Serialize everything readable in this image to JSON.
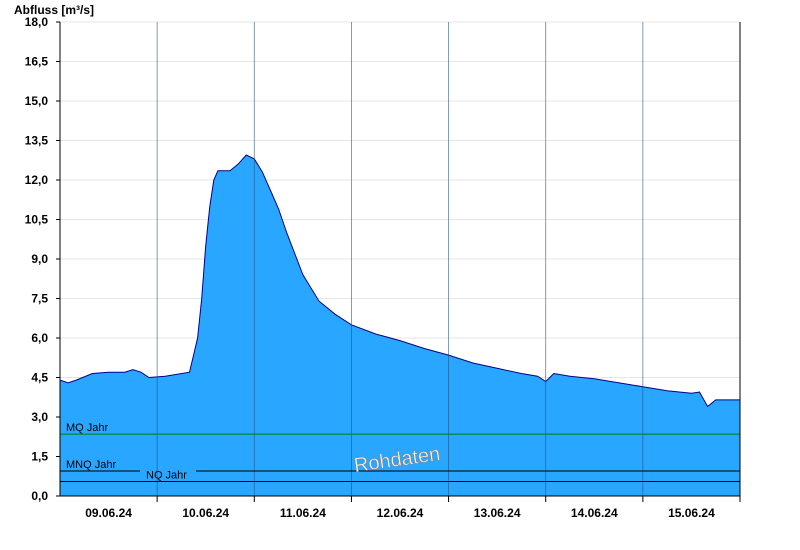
{
  "chart_data": {
    "type": "area",
    "ylabel": "Abfluss [m³/s]",
    "ylim": [
      0,
      18.0
    ],
    "yticks": [
      "0,0",
      "1,5",
      "3,0",
      "4,5",
      "6,0",
      "7,5",
      "9,0",
      "10,5",
      "12,0",
      "13,5",
      "15,0",
      "16,5",
      "18,0"
    ],
    "xlim": [
      "2024-06-08T12:00",
      "2024-06-15T12:00"
    ],
    "xticks": [
      "09.06.24",
      "10.06.24",
      "11.06.24",
      "12.06.24",
      "13.06.24",
      "14.06.24",
      "15.06.24"
    ],
    "grid": true,
    "watermark": "Rohdaten",
    "colors": {
      "area": "#29a6ff",
      "line": "#00008b",
      "mq": "#008000",
      "ref": "#000000"
    },
    "reference_lines": [
      {
        "name": "MQ Jahr",
        "value": 2.35
      },
      {
        "name": "MNQ Jahr",
        "value": 0.95
      },
      {
        "name": "NQ Jahr",
        "value": 0.55
      }
    ],
    "series": [
      {
        "x": [
          "2024-06-08T12:00",
          "2024-06-08T14:00",
          "2024-06-08T16:00",
          "2024-06-08T20:00",
          "2024-06-09T00:00",
          "2024-06-09T04:00",
          "2024-06-09T06:00",
          "2024-06-09T08:00",
          "2024-06-09T10:00",
          "2024-06-09T14:00",
          "2024-06-09T20:00",
          "2024-06-09T22:00",
          "2024-06-09T23:00",
          "2024-06-10T00:00",
          "2024-06-10T01:00",
          "2024-06-10T02:00",
          "2024-06-10T03:00",
          "2024-06-10T04:00",
          "2024-06-10T06:00",
          "2024-06-10T08:00",
          "2024-06-10T10:00",
          "2024-06-10T12:00",
          "2024-06-10T14:00",
          "2024-06-10T16:00",
          "2024-06-10T18:00",
          "2024-06-10T20:00",
          "2024-06-10T22:00",
          "2024-06-11T00:00",
          "2024-06-11T04:00",
          "2024-06-11T08:00",
          "2024-06-11T12:00",
          "2024-06-11T18:00",
          "2024-06-12T00:00",
          "2024-06-12T06:00",
          "2024-06-12T12:00",
          "2024-06-12T18:00",
          "2024-06-13T00:00",
          "2024-06-13T06:00",
          "2024-06-13T10:00",
          "2024-06-13T12:00",
          "2024-06-13T14:00",
          "2024-06-13T18:00",
          "2024-06-14T00:00",
          "2024-06-14T06:00",
          "2024-06-14T12:00",
          "2024-06-14T18:00",
          "2024-06-15T00:00",
          "2024-06-15T02:00",
          "2024-06-15T04:00",
          "2024-06-15T06:00",
          "2024-06-15T12:00"
        ],
        "values": [
          4.4,
          4.3,
          4.4,
          4.65,
          4.7,
          4.7,
          4.8,
          4.7,
          4.5,
          4.55,
          4.7,
          6.0,
          7.5,
          9.5,
          11.0,
          12.0,
          12.35,
          12.35,
          12.35,
          12.6,
          12.95,
          12.8,
          12.3,
          11.6,
          10.9,
          10.0,
          9.2,
          8.4,
          7.4,
          6.9,
          6.5,
          6.15,
          5.9,
          5.6,
          5.35,
          5.05,
          4.85,
          4.65,
          4.55,
          4.35,
          4.65,
          4.55,
          4.45,
          4.3,
          4.15,
          4.0,
          3.9,
          3.95,
          3.4,
          3.65,
          3.65
        ]
      }
    ]
  }
}
